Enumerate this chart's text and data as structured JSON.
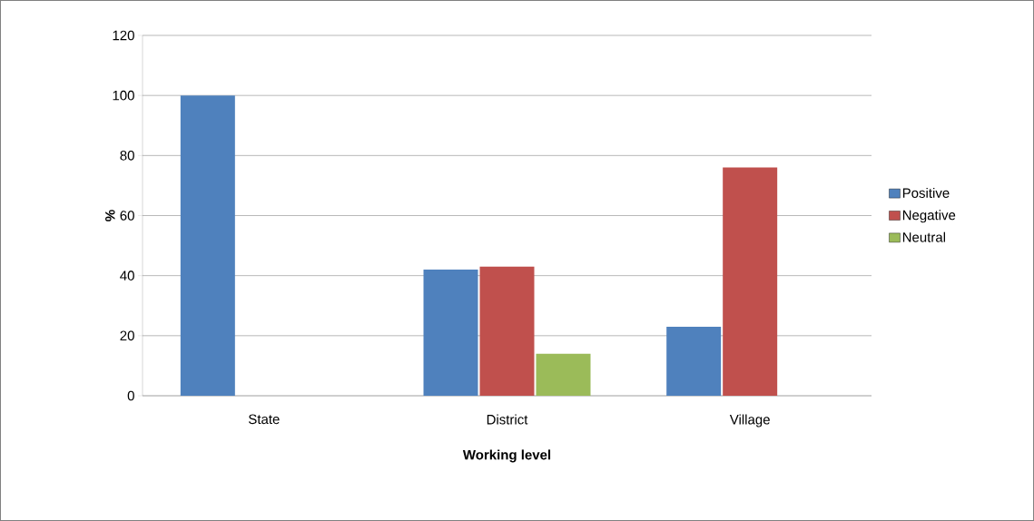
{
  "chart_data": {
    "type": "bar",
    "xlabel": "Working level",
    "ylabel": "%",
    "categories": [
      "State",
      "District",
      "Village"
    ],
    "series": [
      {
        "name": "Positive",
        "color": "#4f81bd",
        "values": [
          100,
          42,
          23
        ]
      },
      {
        "name": "Negative",
        "color": "#c0504d",
        "values": [
          null,
          43,
          76
        ]
      },
      {
        "name": "Neutral",
        "color": "#9bbb59",
        "values": [
          null,
          14,
          null
        ]
      }
    ],
    "ylim": [
      0,
      120
    ],
    "yticks": [
      0,
      20,
      40,
      60,
      80,
      100,
      120
    ],
    "grid": "y",
    "legend": "right"
  }
}
